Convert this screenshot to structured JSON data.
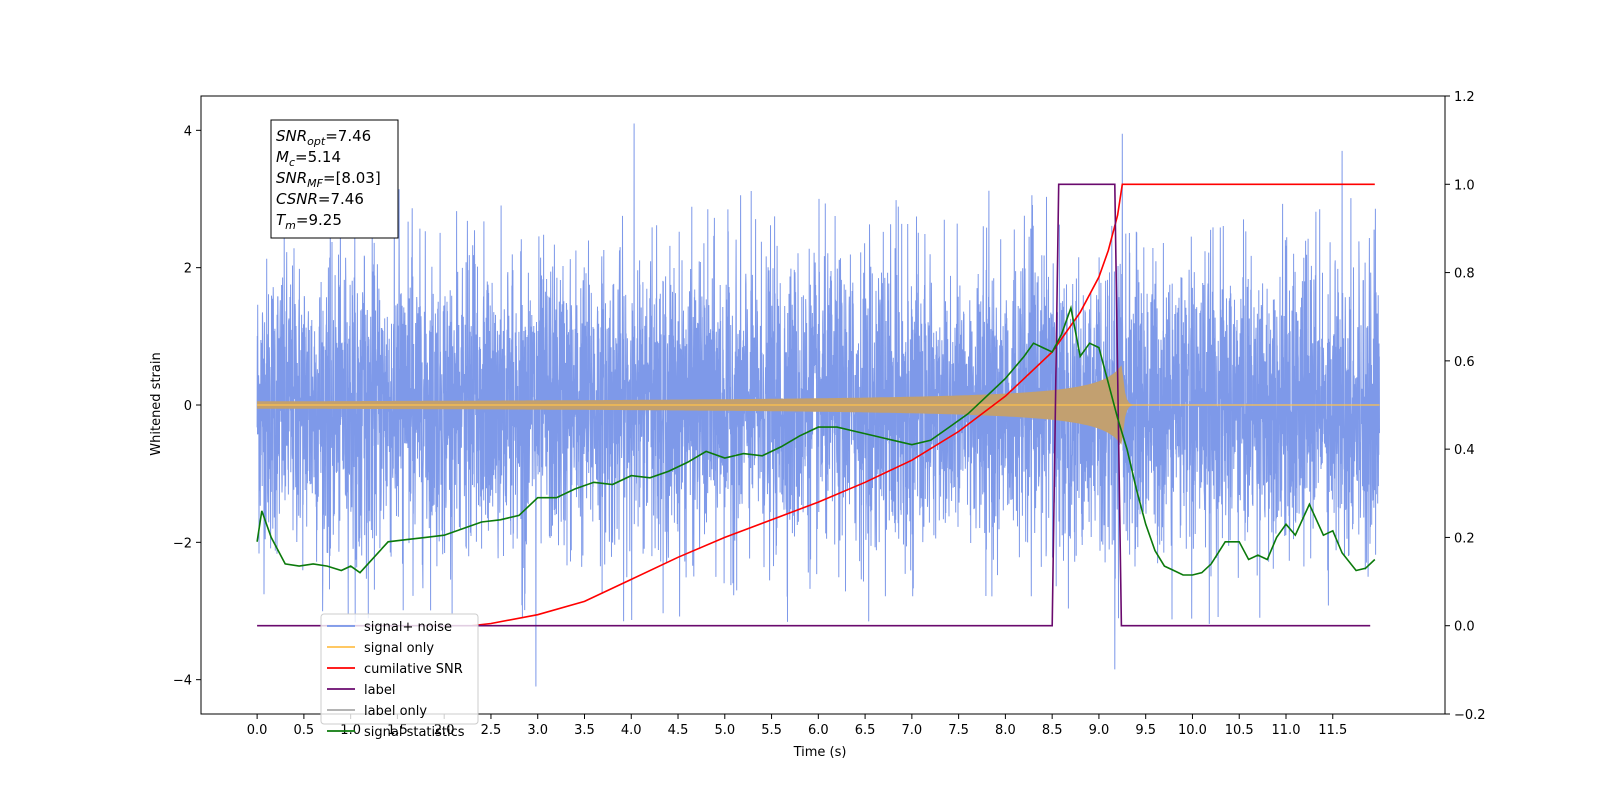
{
  "chart_data": {
    "type": "line",
    "xlabel": "Time (s)",
    "ylabel": "Whitened strain",
    "xlim": [
      -0.6,
      12.7
    ],
    "ylim": [
      -4.5,
      4.5
    ],
    "y2lim": [
      -0.2,
      1.2
    ],
    "x_ticks": [
      "0.0",
      "0.5",
      "1.0",
      "1.5",
      "2.0",
      "2.5",
      "3.0",
      "3.5",
      "4.0",
      "4.5",
      "5.0",
      "5.5",
      "6.0",
      "6.5",
      "7.0",
      "7.5",
      "8.0",
      "8.5",
      "9.0",
      "9.5",
      "10.0",
      "10.5",
      "11.0",
      "11.5"
    ],
    "y_ticks": [
      "−4",
      "−2",
      "0",
      "2",
      "4"
    ],
    "y2_ticks": [
      "−0.2",
      "0.0",
      "0.2",
      "0.4",
      "0.6",
      "0.8",
      "1.0",
      "1.2"
    ],
    "annotation": {
      "lines": [
        {
          "base": "SNR",
          "sub": "opt",
          "rest": "=7.46"
        },
        {
          "base": "M",
          "sub": "c",
          "rest": "=5.14"
        },
        {
          "base": "SNR",
          "sub": "MF",
          "rest": "=[8.03]"
        },
        {
          "base": "CSNR",
          "sub": "",
          "rest": "=7.46"
        },
        {
          "base": "T",
          "sub": "m",
          "rest": "=9.25"
        }
      ]
    },
    "legend": {
      "placement": "lower-left",
      "entries": [
        {
          "label": "signal+ noise",
          "color": "#7794e8"
        },
        {
          "label": "signal only",
          "color": "#ffc14d"
        },
        {
          "label": "cumilative SNR",
          "color": "#ff0000"
        },
        {
          "label": "label",
          "color": "#6a0a6e"
        },
        {
          "label": "label only",
          "color": "#aaaaaa"
        },
        {
          "label": "signal statistics",
          "color": "#0b7a0b"
        }
      ]
    },
    "series": [
      {
        "name": "signal+ noise",
        "axis": "left",
        "color": "#7794e8",
        "t_range": [
          0.0,
          12.0
        ],
        "typical_abs_max": 3.2,
        "peaks": [
          {
            "x": 4.03,
            "y": 4.1
          },
          {
            "x": 9.25,
            "y": 3.95
          },
          {
            "x": 11.6,
            "y": 3.7
          },
          {
            "x": 2.98,
            "y": -4.1
          },
          {
            "x": 9.17,
            "y": -3.85
          }
        ]
      },
      {
        "name": "signal only",
        "axis": "left",
        "color": "#ffc14d",
        "t_range": [
          0.0,
          12.0
        ],
        "merger_time": 9.25,
        "peak_amplitude": 0.6
      },
      {
        "name": "cumilative SNR",
        "axis": "right",
        "color": "#ff0000",
        "x": [
          2.3,
          2.5,
          3.0,
          3.5,
          4.0,
          4.5,
          5.0,
          5.5,
          6.0,
          6.5,
          7.0,
          7.5,
          8.0,
          8.5,
          8.8,
          9.0,
          9.1,
          9.2,
          9.25,
          9.3,
          10.0,
          11.0,
          11.95
        ],
        "y": [
          0.0,
          0.005,
          0.025,
          0.055,
          0.105,
          0.155,
          0.2,
          0.24,
          0.28,
          0.325,
          0.375,
          0.44,
          0.52,
          0.62,
          0.71,
          0.79,
          0.85,
          0.93,
          1.0,
          1.0,
          1.0,
          1.0,
          1.0
        ]
      },
      {
        "name": "label",
        "axis": "right",
        "color": "#6a0a6e",
        "x": [
          0.0,
          8.5,
          8.57,
          9.17,
          9.24,
          11.9
        ],
        "y": [
          0,
          0,
          1,
          1,
          0,
          0
        ]
      },
      {
        "name": "signal statistics",
        "axis": "right",
        "color": "#0b7a0b",
        "x": [
          0.0,
          0.05,
          0.15,
          0.3,
          0.45,
          0.6,
          0.75,
          0.9,
          1.0,
          1.1,
          1.25,
          1.4,
          1.6,
          1.8,
          2.0,
          2.2,
          2.4,
          2.6,
          2.8,
          3.0,
          3.2,
          3.4,
          3.6,
          3.8,
          4.0,
          4.2,
          4.4,
          4.6,
          4.8,
          5.0,
          5.2,
          5.4,
          5.6,
          5.8,
          6.0,
          6.2,
          6.4,
          6.6,
          6.8,
          7.0,
          7.2,
          7.4,
          7.6,
          7.8,
          8.0,
          8.2,
          8.3,
          8.4,
          8.5,
          8.6,
          8.7,
          8.8,
          8.9,
          9.0,
          9.1,
          9.2,
          9.3,
          9.4,
          9.5,
          9.6,
          9.7,
          9.8,
          9.9,
          10.0,
          10.1,
          10.2,
          10.35,
          10.5,
          10.6,
          10.7,
          10.8,
          10.9,
          11.0,
          11.1,
          11.25,
          11.4,
          11.5,
          11.6,
          11.75,
          11.85,
          11.95
        ],
        "y": [
          0.19,
          0.26,
          0.2,
          0.14,
          0.135,
          0.14,
          0.135,
          0.125,
          0.135,
          0.12,
          0.155,
          0.19,
          0.195,
          0.2,
          0.205,
          0.22,
          0.235,
          0.24,
          0.25,
          0.29,
          0.29,
          0.31,
          0.325,
          0.32,
          0.34,
          0.335,
          0.35,
          0.37,
          0.395,
          0.38,
          0.39,
          0.385,
          0.405,
          0.43,
          0.45,
          0.45,
          0.44,
          0.43,
          0.42,
          0.41,
          0.42,
          0.45,
          0.48,
          0.52,
          0.56,
          0.61,
          0.64,
          0.63,
          0.62,
          0.66,
          0.72,
          0.61,
          0.64,
          0.63,
          0.55,
          0.47,
          0.4,
          0.31,
          0.23,
          0.17,
          0.135,
          0.125,
          0.115,
          0.115,
          0.12,
          0.14,
          0.19,
          0.19,
          0.15,
          0.16,
          0.15,
          0.2,
          0.23,
          0.205,
          0.275,
          0.205,
          0.215,
          0.165,
          0.125,
          0.13,
          0.15
        ]
      }
    ]
  }
}
